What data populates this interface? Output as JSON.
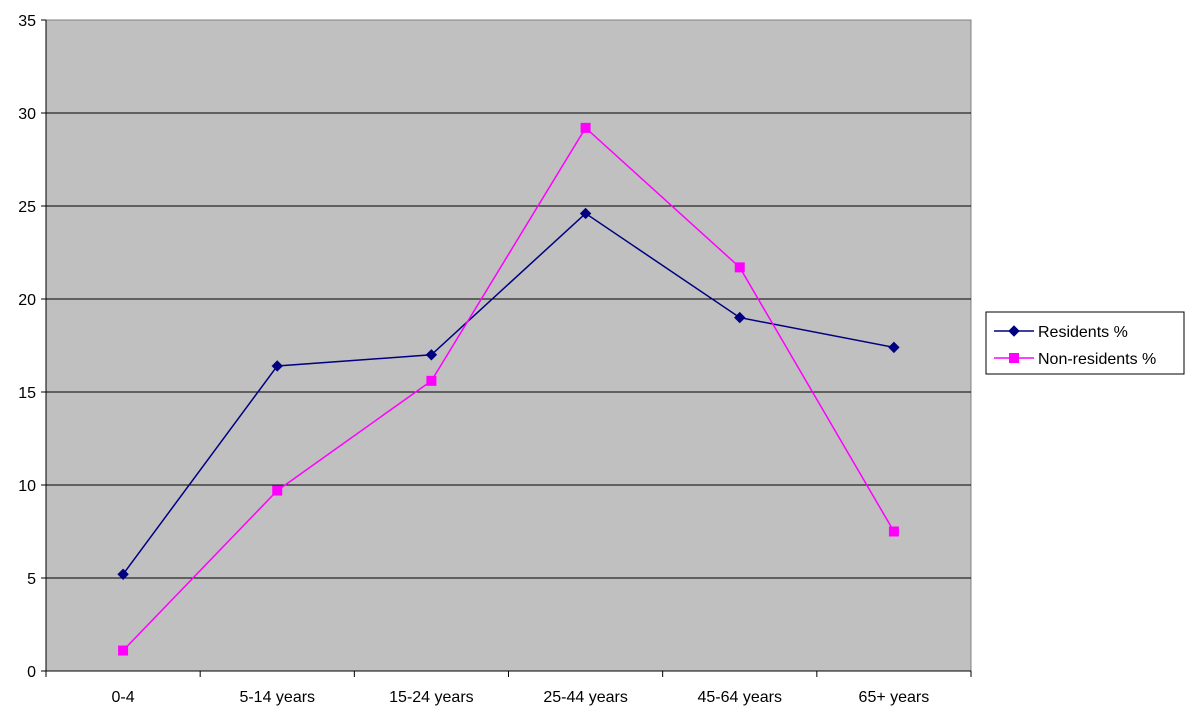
{
  "chart_data": {
    "type": "line",
    "categories": [
      "0-4",
      "5-14 years",
      "15-24 years",
      "25-44 years",
      "45-64 years",
      "65+ years"
    ],
    "series": [
      {
        "name": "Residents %",
        "color": "#000080",
        "marker": "diamond",
        "values": [
          5.2,
          16.4,
          17.0,
          24.6,
          19.0,
          17.4
        ]
      },
      {
        "name": "Non-residents %",
        "color": "#FF00FF",
        "marker": "square",
        "values": [
          1.1,
          9.7,
          15.6,
          29.2,
          21.7,
          7.5
        ]
      }
    ],
    "yticks": [
      "0",
      "5",
      "10",
      "15",
      "20",
      "25",
      "30",
      "35"
    ],
    "ylim": [
      0,
      35
    ],
    "grid": true,
    "legend": "right",
    "plot_background": "#C0C0C0"
  }
}
